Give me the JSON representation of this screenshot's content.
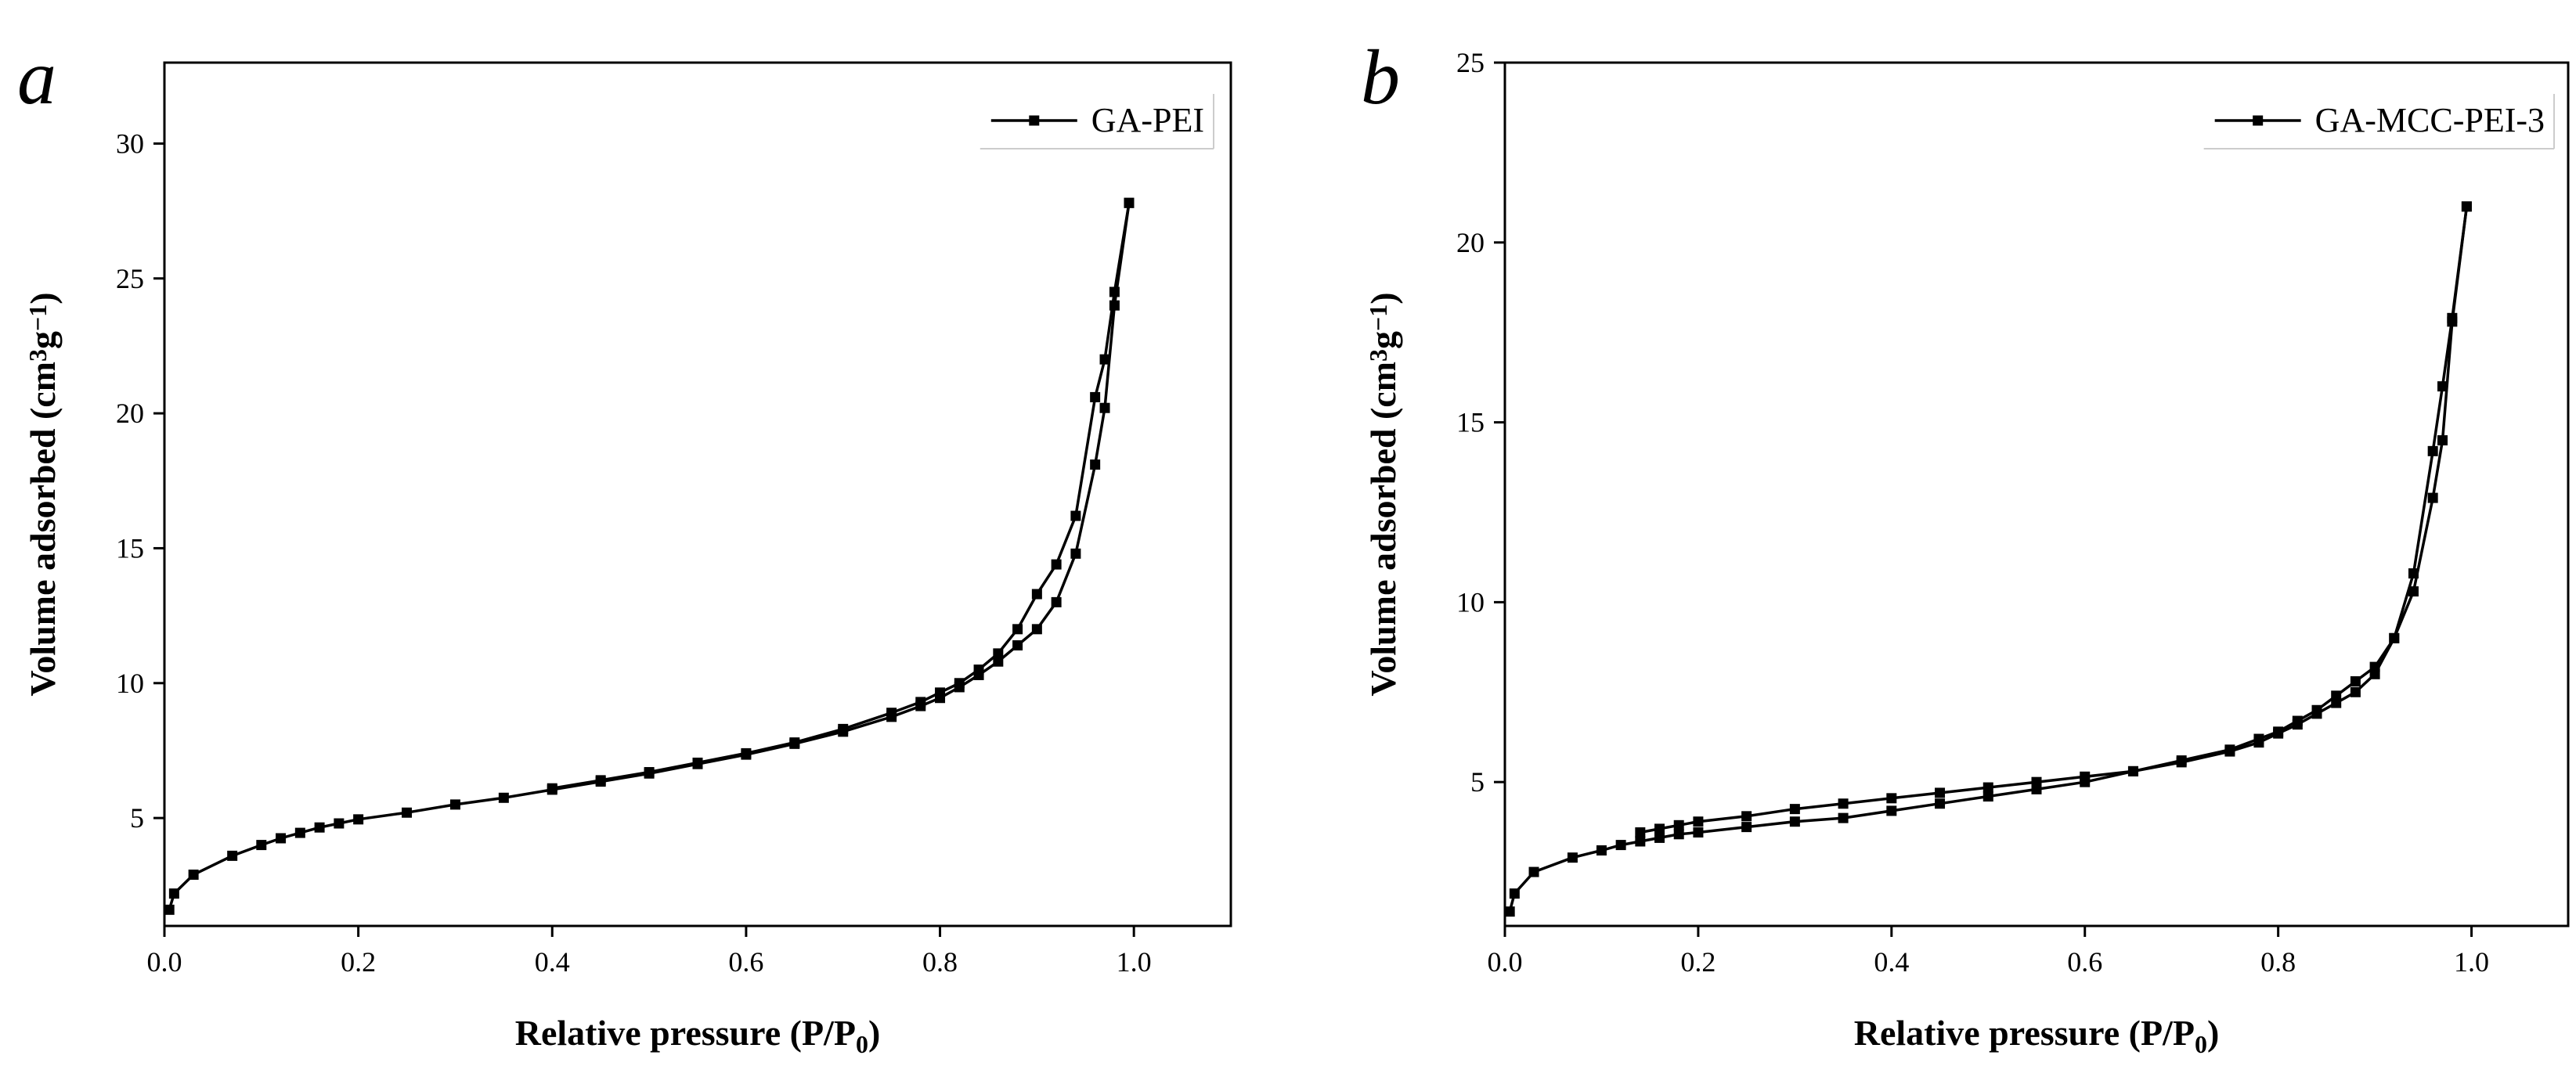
{
  "chart_data": [
    {
      "type": "line",
      "panel_label": "a",
      "xlabel": "Relative pressure (P/P",
      "xlabel_sub": "0",
      "xlabel_close": ")",
      "ylabel": "Volume adsorbed (cm",
      "ylabel_sup1": "3",
      "ylabel_mid": "g",
      "ylabel_sup2": "−1",
      "ylabel_close": ")",
      "xlim": [
        0,
        1.1
      ],
      "ylim": [
        1,
        33
      ],
      "xticks": [
        0.0,
        0.2,
        0.4,
        0.6,
        0.8,
        1.0
      ],
      "xtick_labels": [
        "0.0",
        "0.2",
        "0.4",
        "0.6",
        "0.8",
        "1.0"
      ],
      "yticks": [
        5,
        10,
        15,
        20,
        25,
        30
      ],
      "ytick_labels": [
        "5",
        "10",
        "15",
        "20",
        "25",
        "30"
      ],
      "legend_position": "top-right",
      "series": [
        {
          "name": "GA-PEI",
          "adsorption": {
            "x": [
              0.005,
              0.01,
              0.03,
              0.07,
              0.1,
              0.12,
              0.14,
              0.16,
              0.18,
              0.2,
              0.25,
              0.3,
              0.35,
              0.4,
              0.45,
              0.5,
              0.55,
              0.6,
              0.65,
              0.7,
              0.75,
              0.78,
              0.8,
              0.82,
              0.84,
              0.86,
              0.88,
              0.9,
              0.92,
              0.94,
              0.96,
              0.97,
              0.98,
              0.995
            ],
            "y": [
              1.6,
              2.2,
              2.9,
              3.6,
              4.0,
              4.25,
              4.45,
              4.65,
              4.8,
              4.95,
              5.2,
              5.5,
              5.75,
              6.05,
              6.35,
              6.65,
              7.0,
              7.35,
              7.75,
              8.2,
              8.75,
              9.15,
              9.45,
              9.85,
              10.3,
              10.8,
              11.4,
              12.0,
              13.0,
              14.8,
              18.1,
              20.2,
              24.0,
              27.8
            ]
          },
          "desorption": {
            "x": [
              0.995,
              0.98,
              0.97,
              0.96,
              0.94,
              0.92,
              0.9,
              0.88,
              0.86,
              0.84,
              0.82,
              0.8,
              0.78,
              0.75,
              0.7,
              0.65,
              0.6,
              0.55,
              0.5,
              0.45,
              0.4
            ],
            "y": [
              27.8,
              24.5,
              22.0,
              20.6,
              16.2,
              14.4,
              13.3,
              12.0,
              11.1,
              10.5,
              10.0,
              9.65,
              9.3,
              8.9,
              8.3,
              7.8,
              7.4,
              7.05,
              6.7,
              6.4,
              6.1
            ]
          }
        }
      ]
    },
    {
      "type": "line",
      "panel_label": "b",
      "xlabel": "Relative pressure (P/P",
      "xlabel_sub": "0",
      "xlabel_close": ")",
      "ylabel": "Volume adsorbed (cm",
      "ylabel_sup1": "3",
      "ylabel_mid": "g",
      "ylabel_sup2": "−1",
      "ylabel_close": ")",
      "xlim": [
        0,
        1.1
      ],
      "ylim": [
        1,
        25
      ],
      "xticks": [
        0.0,
        0.2,
        0.4,
        0.6,
        0.8,
        1.0
      ],
      "xtick_labels": [
        "0.0",
        "0.2",
        "0.4",
        "0.6",
        "0.8",
        "1.0"
      ],
      "yticks": [
        5,
        10,
        15,
        20,
        25
      ],
      "ytick_labels": [
        "5",
        "10",
        "15",
        "20",
        "25"
      ],
      "legend_position": "top-right",
      "series": [
        {
          "name": "GA-MCC-PEI-3",
          "adsorption": {
            "x": [
              0.005,
              0.01,
              0.03,
              0.07,
              0.1,
              0.12,
              0.14,
              0.16,
              0.18,
              0.2,
              0.25,
              0.3,
              0.35,
              0.4,
              0.45,
              0.5,
              0.55,
              0.6,
              0.65,
              0.7,
              0.75,
              0.78,
              0.8,
              0.82,
              0.84,
              0.86,
              0.88,
              0.9,
              0.92,
              0.94,
              0.96,
              0.97,
              0.98,
              0.995
            ],
            "y": [
              1.4,
              1.9,
              2.5,
              2.9,
              3.1,
              3.25,
              3.35,
              3.45,
              3.55,
              3.6,
              3.75,
              3.9,
              4.0,
              4.2,
              4.4,
              4.6,
              4.8,
              5.0,
              5.3,
              5.6,
              5.9,
              6.2,
              6.4,
              6.7,
              7.0,
              7.4,
              7.8,
              8.2,
              9.0,
              10.3,
              12.9,
              14.5,
              17.8,
              21.0
            ]
          },
          "desorption": {
            "x": [
              0.995,
              0.98,
              0.97,
              0.96,
              0.94,
              0.92,
              0.9,
              0.88,
              0.86,
              0.84,
              0.82,
              0.8,
              0.78,
              0.75,
              0.7,
              0.65,
              0.6,
              0.55,
              0.5,
              0.45,
              0.4,
              0.35,
              0.3,
              0.25,
              0.2,
              0.18,
              0.16,
              0.14
            ],
            "y": [
              21.0,
              17.9,
              16.0,
              14.2,
              10.8,
              9.0,
              8.0,
              7.5,
              7.2,
              6.9,
              6.6,
              6.35,
              6.1,
              5.85,
              5.55,
              5.3,
              5.15,
              5.0,
              4.85,
              4.7,
              4.55,
              4.4,
              4.25,
              4.05,
              3.9,
              3.8,
              3.7,
              3.6
            ]
          }
        }
      ]
    }
  ]
}
